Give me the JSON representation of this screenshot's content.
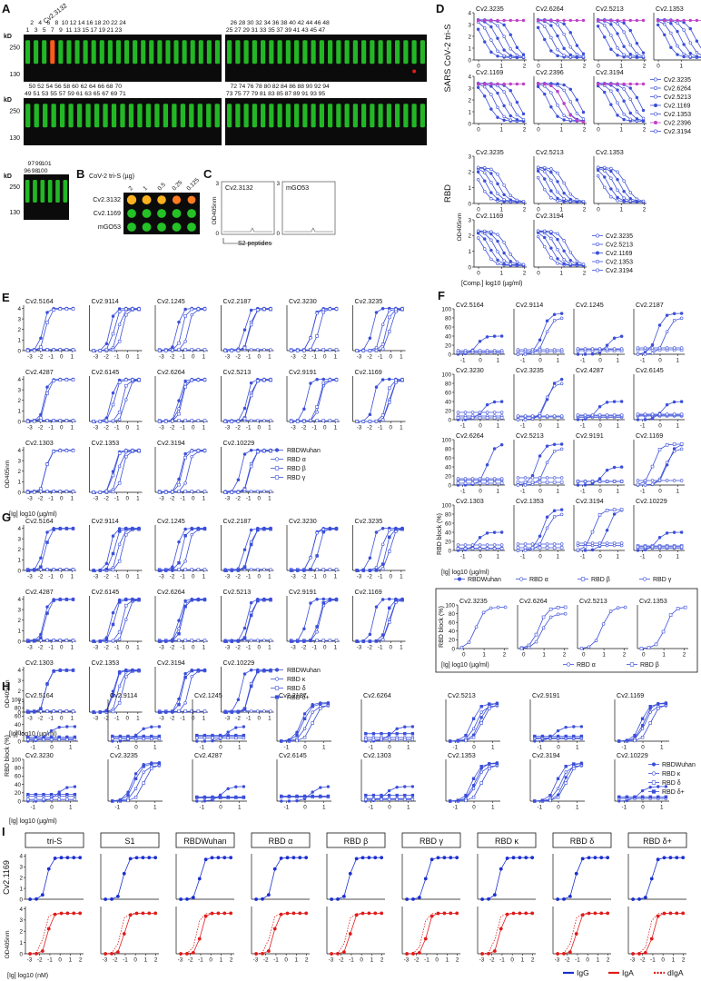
{
  "panel_letters": [
    "A",
    "B",
    "C",
    "D",
    "E",
    "F",
    "G",
    "H",
    "I"
  ],
  "colors": {
    "blue": "#3b4fd9",
    "purple": "#c040c8",
    "red": "#e01b1b",
    "gel_bg": "#0b0b0b",
    "band": "#27d62a",
    "band_red": "#ff5b1a"
  },
  "panelA": {
    "y_unit": "kD",
    "ticks": [
      "250",
      "130"
    ],
    "highlight_label": "Cv2.3132",
    "rows": [
      {
        "top": [
          "2",
          "4",
          "6",
          "8",
          "10",
          "12",
          "14",
          "16",
          "18",
          "20",
          "22",
          "24"
        ],
        "bottom": [
          "1",
          "3",
          "5",
          "7",
          "9",
          "11",
          "13",
          "15",
          "17",
          "19",
          "21",
          "23"
        ],
        "right_top": [
          "26",
          "28",
          "30",
          "32",
          "34",
          "36",
          "38",
          "40",
          "42",
          "44",
          "46",
          "48"
        ],
        "right_bottom": [
          "25",
          "27",
          "29",
          "31",
          "33",
          "35",
          "37",
          "39",
          "41",
          "43",
          "45",
          "47"
        ]
      },
      {
        "top": [
          "50",
          "52",
          "54",
          "56",
          "58",
          "60",
          "62",
          "64",
          "66",
          "68",
          "70"
        ],
        "bottom": [
          "49",
          "51",
          "53",
          "55",
          "57",
          "59",
          "61",
          "63",
          "65",
          "67",
          "69",
          "71"
        ],
        "right_top": [
          "72",
          "74",
          "76",
          "78",
          "80",
          "82",
          "84",
          "86",
          "88",
          "90",
          "92",
          "94"
        ],
        "right_bottom": [
          "73",
          "75",
          "77",
          "79",
          "81",
          "83",
          "85",
          "87",
          "89",
          "91",
          "93",
          "95"
        ]
      },
      {
        "top": [
          "97",
          "99",
          "101"
        ],
        "bottom": [
          "96",
          "98",
          "100"
        ]
      }
    ]
  },
  "panelB": {
    "title": "CoV-2 tri-S (µg)",
    "doses": [
      "2",
      "1",
      "0.5",
      "0.25",
      "0.125"
    ],
    "rows": [
      "Cv2.3132",
      "Cv2.1169",
      "mGO53"
    ]
  },
  "panelC": {
    "plots": [
      "Cv2.3132",
      "mGO53"
    ],
    "ylabel": "OD405nm",
    "xlabel": "S2 peptides",
    "yticks": [
      "3",
      "0"
    ]
  },
  "panelD": {
    "side1": "SARS CoV-2 tri-S",
    "side2": "RBD",
    "triS_plots": [
      "Cv2.3235",
      "Cv2.6264",
      "Cv2.5213",
      "Cv2.1353",
      "Cv2.1169",
      "Cv2.2396",
      "Cv2.3194"
    ],
    "triS_legend": [
      "Cv2.3235",
      "Cv2.6264",
      "Cv2.5213",
      "Cv2.1169",
      "Cv2.1353",
      "Cv2.2396",
      "Cv2.3194"
    ],
    "rbd_plots": [
      "Cv2.3235",
      "Cv2.5213",
      "Cv2.1353",
      "Cv2.1169",
      "Cv2.3194"
    ],
    "rbd_legend": [
      "Cv2.3235",
      "Cv2.5213",
      "Cv2.1169",
      "Cv2.1353",
      "Cv2.3194"
    ],
    "ylabel": "OD405nm",
    "xlabel": "[Comp.] log10 (µg/ml)",
    "xticks": [
      "0",
      "1",
      "2"
    ],
    "yticks": [
      "4",
      "3",
      "2",
      "1",
      "0"
    ]
  },
  "panelE": {
    "plots": [
      "Cv2.5164",
      "Cv2.9114",
      "Cv2.1245",
      "Cv2.2187",
      "Cv2.3230",
      "Cv2.3235",
      "Cv2.4287",
      "Cv2.6145",
      "Cv2.6264",
      "Cv2.5213",
      "Cv2.9191",
      "Cv2.1169",
      "Cv2.1303",
      "Cv2.1353",
      "Cv2.3194",
      "Cv2.10229"
    ],
    "legend": [
      "RBDWuhan",
      "RBD α",
      "RBD β",
      "RBD γ"
    ],
    "ylabel": "OD405nm",
    "xlabel": "[Ig] log10 (µg/ml)",
    "xticks": [
      "-3",
      "-2",
      "-1",
      "0",
      "1"
    ],
    "yticks": [
      "4",
      "3",
      "2",
      "1",
      "0"
    ]
  },
  "panelF": {
    "plots": [
      "Cv2.5164",
      "Cv2.9114",
      "Cv2.1245",
      "Cv2.2187",
      "Cv2.3230",
      "Cv2.3235",
      "Cv2.4287",
      "Cv2.6145",
      "Cv2.6264",
      "Cv2.5213",
      "Cv2.9191",
      "Cv2.1169",
      "Cv2.1303",
      "Cv2.1353",
      "Cv2.3194",
      "Cv2.10229"
    ],
    "legend": [
      "RBDWuhan",
      "RBD α",
      "RBD β",
      "RBD γ"
    ],
    "box_plots": [
      "Cv2.3235",
      "Cv2.6264",
      "Cv2.5213",
      "Cv2.1353"
    ],
    "box_legend": [
      "RBD α",
      "RBD β"
    ],
    "ylabel": "RBD block (%)",
    "xlabel": "[Ig] log10 (µg/ml)",
    "xticks": [
      "-1",
      "0",
      "1"
    ],
    "box_xticks": [
      "0",
      "1",
      "2"
    ],
    "yticks": [
      "100",
      "80",
      "60",
      "40",
      "20",
      "0"
    ]
  },
  "panelG": {
    "plots": [
      "Cv2.5164",
      "Cv2.9114",
      "Cv2.1245",
      "Cv2.2187",
      "Cv2.3230",
      "Cv2.3235",
      "Cv2.4287",
      "Cv2.6145",
      "Cv2.6264",
      "Cv2.5213",
      "Cv2.9191",
      "Cv2.1169",
      "Cv2.1303",
      "Cv2.1353",
      "Cv2.3194",
      "Cv2.10229"
    ],
    "legend": [
      "RBDWuhan",
      "RBD κ",
      "RBD δ",
      "RBD δ+"
    ],
    "ylabel": "OD405nm",
    "xlabel": "[Ig] log10 (µg/ml)",
    "xticks": [
      "-3",
      "-2",
      "-1",
      "0",
      "1"
    ],
    "yticks": [
      "4",
      "3",
      "2",
      "1",
      "0"
    ]
  },
  "panelH": {
    "plots": [
      "Cv2.5164",
      "Cv2.9114",
      "Cv2.1245",
      "Cv2.2187",
      "Cv2.6264",
      "Cv2.5213",
      "Cv2.9191",
      "Cv2.1169",
      "Cv2.3230",
      "Cv2.3235",
      "Cv2.4287",
      "Cv2.6145",
      "Cv2.1303",
      "Cv2.1353",
      "Cv2.3194",
      "Cv2.10229"
    ],
    "legend": [
      "RBDWuhan",
      "RBD κ",
      "RBD δ",
      "RBD δ+"
    ],
    "ylabel": "RBD block (%)",
    "xlabel": "[Ig] log10 (µg/ml)",
    "xticks": [
      "-1",
      "0",
      "1"
    ],
    "yticks": [
      "100",
      "80",
      "60",
      "40",
      "20",
      "0"
    ]
  },
  "panelI": {
    "antigens": [
      "tri-S",
      "S1",
      "RBDWuhan",
      "RBD α",
      "RBD β",
      "RBD γ",
      "RBD κ",
      "RBD δ",
      "RBD δ+"
    ],
    "row_label": "Cv2.1169",
    "ylabel": "OD405nm",
    "xlabel": "[Ig] log10 (nM)",
    "xticks": [
      "-3",
      "-2",
      "-1",
      "0",
      "1",
      "2"
    ],
    "yticks": [
      "4",
      "3",
      "2",
      "1",
      "0"
    ],
    "legend": [
      "IgG",
      "IgA",
      "dIgA"
    ]
  }
}
